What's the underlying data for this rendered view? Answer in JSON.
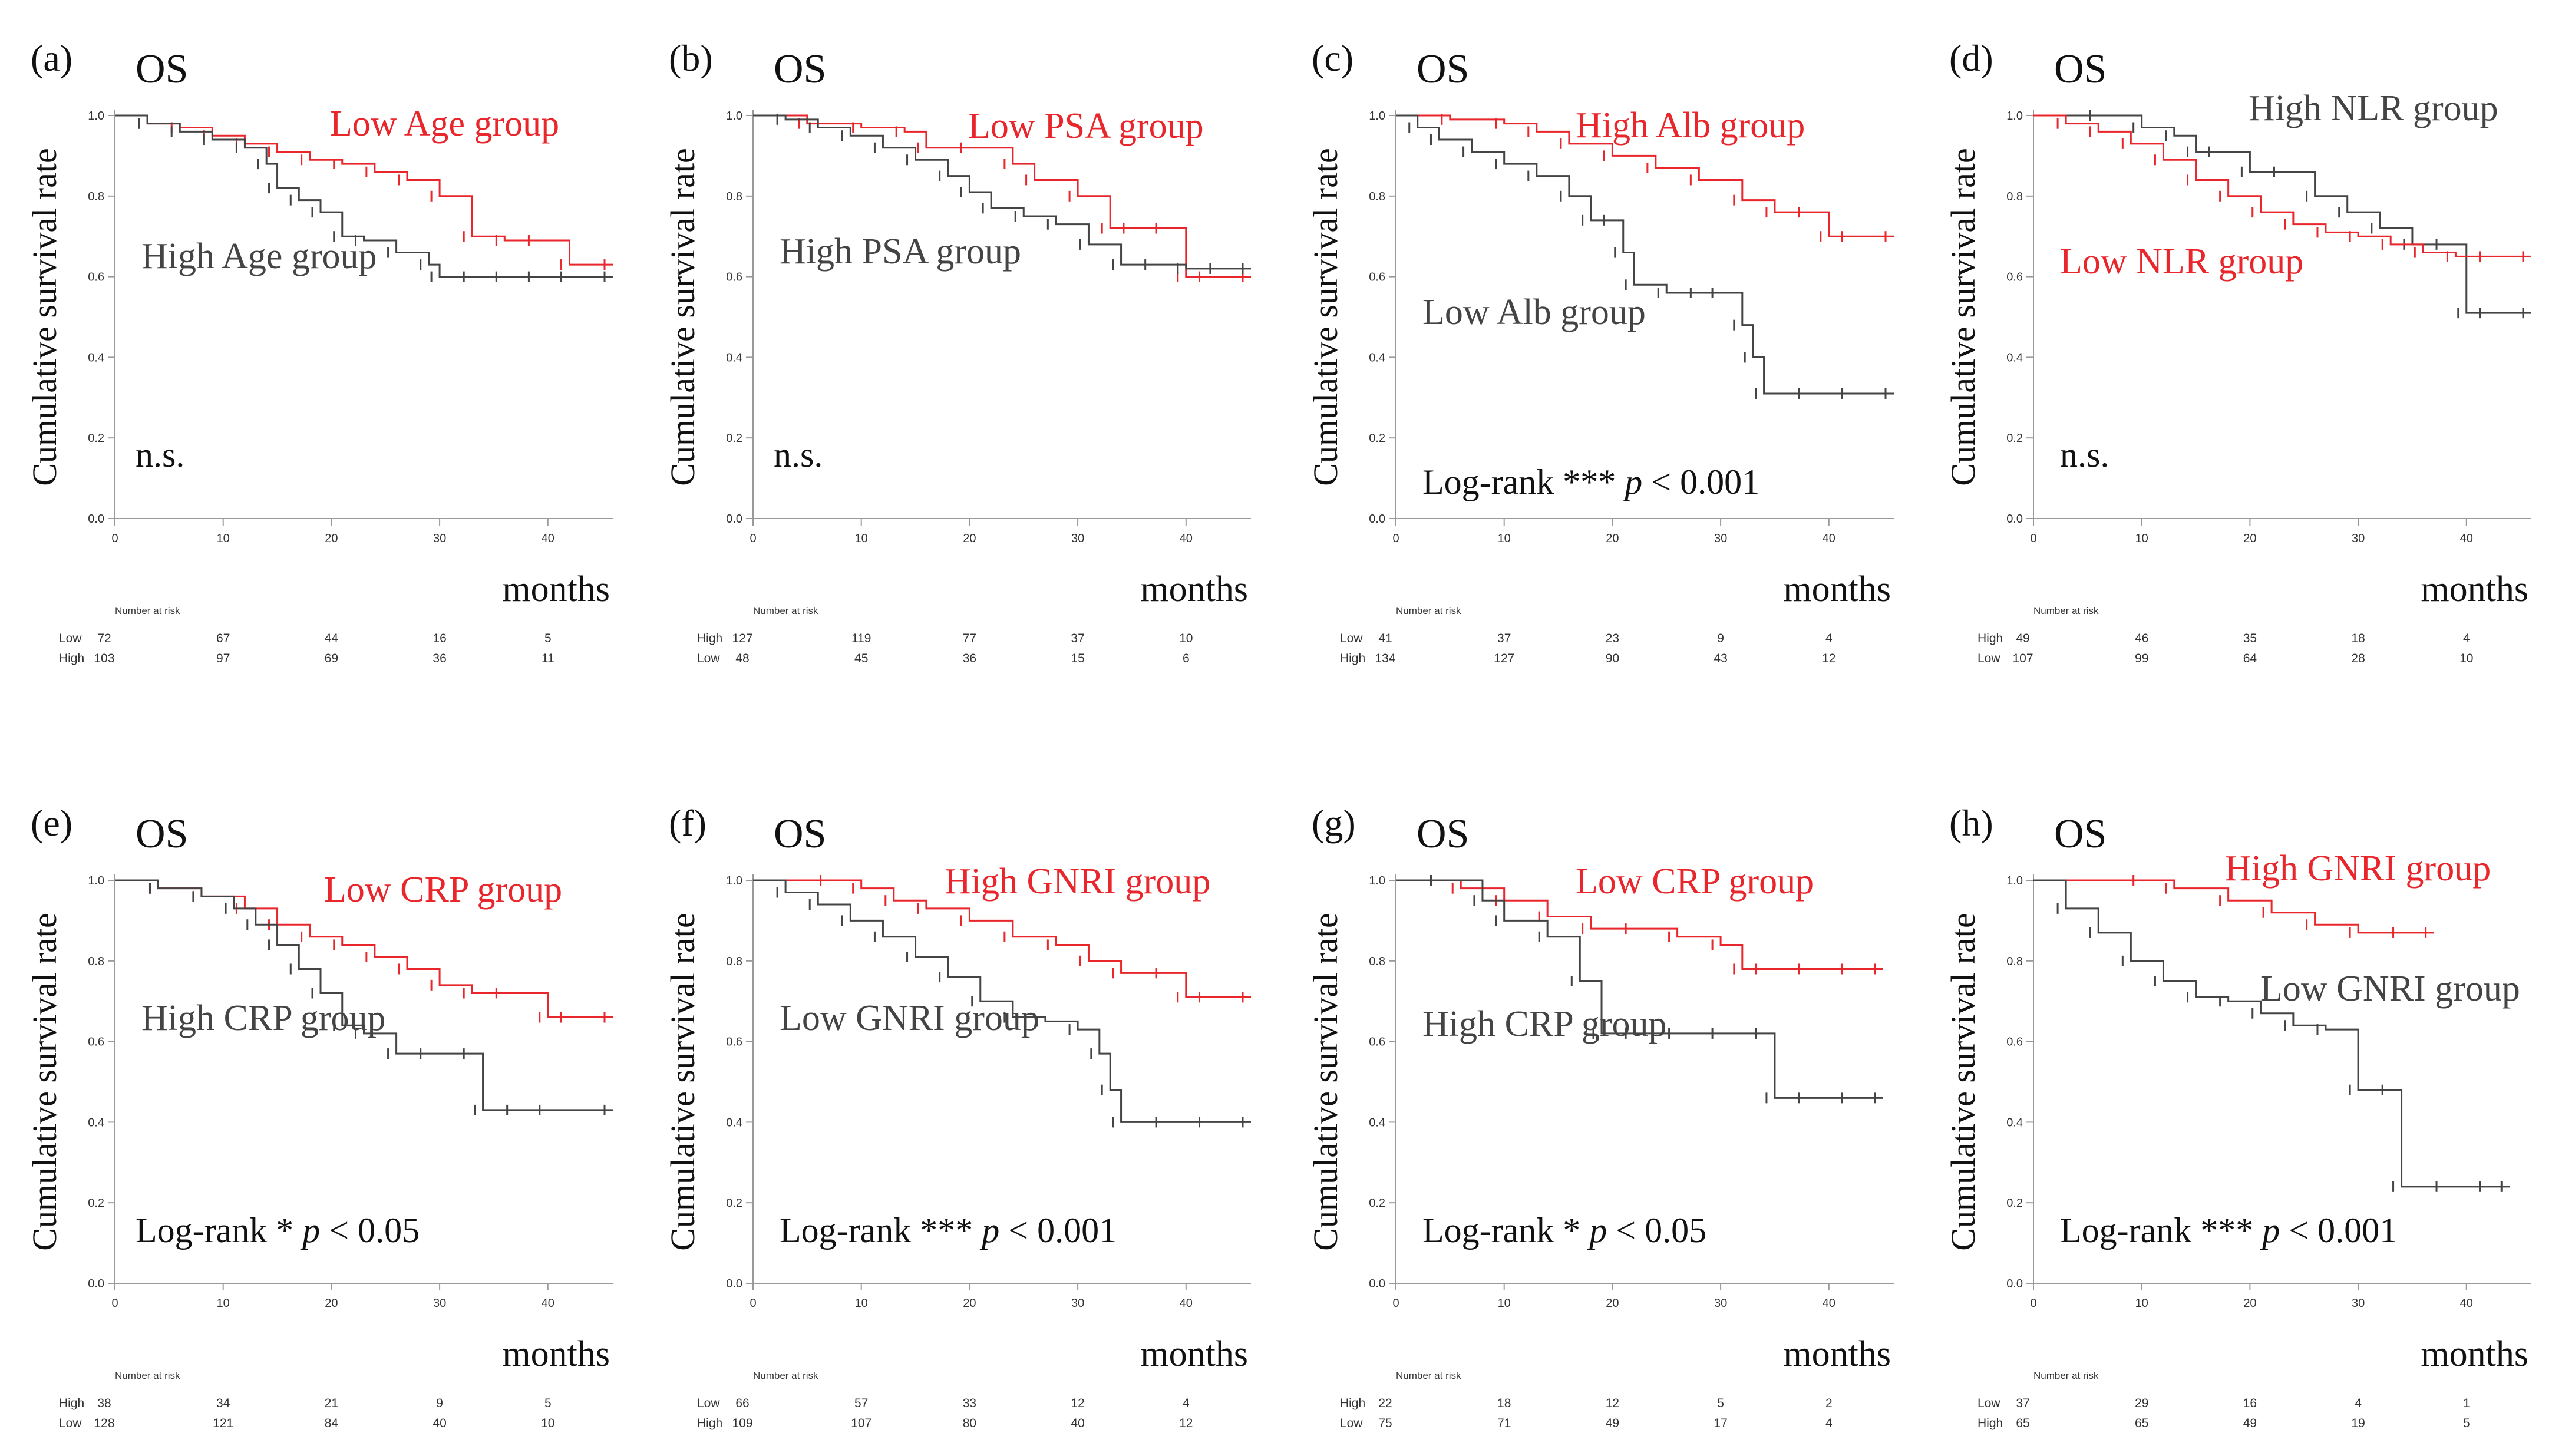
{
  "colors": {
    "red": "#e8262b",
    "dark": "#444444",
    "axis": "#9a9a9a"
  },
  "common": {
    "xlabel": "months",
    "ylabel": "Cumulative survival rate",
    "xticks": [
      "0",
      "10",
      "20",
      "30",
      "40"
    ],
    "yticks": [
      "0.0",
      "0.2",
      "0.4",
      "0.6",
      "0.8",
      "1.0"
    ],
    "xlim": [
      0,
      46
    ],
    "ylim": [
      0,
      1
    ],
    "risk_title": "Number at risk",
    "risk_times": [
      0,
      10,
      20,
      30,
      40
    ]
  },
  "chart_data": [
    {
      "type": "line",
      "panel": "(a)",
      "title": "OS",
      "annotation": "n.s.",
      "series": [
        {
          "name": "Low Age group",
          "color": "red",
          "x": [
            0,
            3,
            6,
            9,
            12,
            15,
            18,
            21,
            24,
            27,
            30,
            33,
            36,
            39,
            42,
            46
          ],
          "y": [
            1.0,
            0.98,
            0.97,
            0.95,
            0.93,
            0.91,
            0.89,
            0.88,
            0.86,
            0.84,
            0.8,
            0.7,
            0.69,
            0.69,
            0.63,
            0.63
          ]
        },
        {
          "name": "High Age group",
          "color": "dark",
          "x": [
            0,
            3,
            6,
            9,
            12,
            14,
            15,
            17,
            19,
            21,
            23,
            26,
            29,
            30,
            33,
            36,
            39,
            42,
            46
          ],
          "y": [
            1.0,
            0.98,
            0.96,
            0.94,
            0.92,
            0.88,
            0.82,
            0.79,
            0.76,
            0.7,
            0.69,
            0.66,
            0.63,
            0.6,
            0.6,
            0.6,
            0.6,
            0.6,
            0.6
          ]
        }
      ],
      "risk_table": [
        {
          "label": "Low",
          "values": [
            "72",
            "67",
            "44",
            "16",
            "5"
          ]
        },
        {
          "label": "High",
          "values": [
            "103",
            "97",
            "69",
            "36",
            "11"
          ]
        }
      ]
    },
    {
      "type": "line",
      "panel": "(b)",
      "title": "OS",
      "annotation": "n.s.",
      "series": [
        {
          "name": "Low PSA group",
          "color": "red",
          "x": [
            0,
            5,
            10,
            14,
            16,
            20,
            24,
            26,
            30,
            33,
            35,
            38,
            40,
            42,
            46
          ],
          "y": [
            1.0,
            0.98,
            0.97,
            0.96,
            0.92,
            0.92,
            0.88,
            0.84,
            0.8,
            0.72,
            0.72,
            0.72,
            0.6,
            0.6,
            0.6
          ]
        },
        {
          "name": "High PSA group",
          "color": "dark",
          "x": [
            0,
            3,
            6,
            9,
            12,
            15,
            18,
            20,
            22,
            25,
            28,
            31,
            34,
            37,
            40,
            43,
            46
          ],
          "y": [
            1.0,
            0.99,
            0.97,
            0.95,
            0.92,
            0.89,
            0.85,
            0.81,
            0.77,
            0.75,
            0.73,
            0.68,
            0.63,
            0.63,
            0.62,
            0.62,
            0.62
          ]
        }
      ],
      "risk_table": [
        {
          "label": "High",
          "values": [
            "127",
            "119",
            "77",
            "37",
            "10"
          ]
        },
        {
          "label": "Low",
          "values": [
            "48",
            "45",
            "36",
            "15",
            "6"
          ]
        }
      ]
    },
    {
      "type": "line",
      "panel": "(c)",
      "title": "OS",
      "annotation": "Log-rank *** p < 0.001",
      "series": [
        {
          "name": "High Alb group",
          "color": "red",
          "x": [
            0,
            5,
            10,
            13,
            16,
            20,
            24,
            28,
            32,
            35,
            38,
            40,
            42,
            46
          ],
          "y": [
            1.0,
            0.99,
            0.98,
            0.96,
            0.93,
            0.9,
            0.87,
            0.84,
            0.79,
            0.76,
            0.76,
            0.7,
            0.7,
            0.7
          ]
        },
        {
          "name": "Low Alb group",
          "color": "dark",
          "x": [
            0,
            2,
            4,
            7,
            10,
            13,
            16,
            18,
            20,
            21,
            22,
            25,
            28,
            30,
            32,
            33,
            34,
            38,
            42,
            46
          ],
          "y": [
            1.0,
            0.97,
            0.94,
            0.91,
            0.88,
            0.85,
            0.8,
            0.74,
            0.74,
            0.66,
            0.58,
            0.56,
            0.56,
            0.56,
            0.48,
            0.4,
            0.31,
            0.31,
            0.31,
            0.31
          ]
        }
      ],
      "risk_table": [
        {
          "label": "Low",
          "values": [
            "41",
            "37",
            "23",
            "9",
            "4"
          ]
        },
        {
          "label": "High",
          "values": [
            "134",
            "127",
            "90",
            "43",
            "12"
          ]
        }
      ]
    },
    {
      "type": "line",
      "panel": "(d)",
      "title": "OS",
      "annotation": "n.s.",
      "series": [
        {
          "name": "High NLR group",
          "color": "dark",
          "x": [
            0,
            6,
            10,
            13,
            15,
            17,
            20,
            23,
            26,
            29,
            32,
            35,
            38,
            40,
            42,
            46
          ],
          "y": [
            1.0,
            1.0,
            0.97,
            0.95,
            0.91,
            0.91,
            0.86,
            0.86,
            0.8,
            0.76,
            0.72,
            0.68,
            0.68,
            0.51,
            0.51,
            0.51
          ]
        },
        {
          "name": "Low NLR group",
          "color": "red",
          "x": [
            0,
            3,
            6,
            9,
            12,
            15,
            18,
            21,
            24,
            27,
            30,
            33,
            36,
            39,
            42,
            46
          ],
          "y": [
            1.0,
            0.98,
            0.96,
            0.93,
            0.89,
            0.84,
            0.8,
            0.76,
            0.73,
            0.71,
            0.7,
            0.68,
            0.66,
            0.65,
            0.65,
            0.65
          ]
        }
      ],
      "risk_table": [
        {
          "label": "High",
          "values": [
            "49",
            "46",
            "35",
            "18",
            "4"
          ]
        },
        {
          "label": "Low",
          "values": [
            "107",
            "99",
            "64",
            "28",
            "10"
          ]
        }
      ]
    },
    {
      "type": "line",
      "panel": "(e)",
      "title": "OS",
      "annotation": "Log-rank * p < 0.05",
      "series": [
        {
          "name": "Low CRP group",
          "color": "red",
          "x": [
            0,
            4,
            8,
            12,
            15,
            18,
            21,
            24,
            27,
            30,
            33,
            36,
            40,
            42,
            46
          ],
          "y": [
            1.0,
            0.98,
            0.96,
            0.93,
            0.89,
            0.86,
            0.84,
            0.81,
            0.78,
            0.74,
            0.72,
            0.72,
            0.66,
            0.66,
            0.66
          ]
        },
        {
          "name": "High CRP group",
          "color": "dark",
          "x": [
            0,
            4,
            8,
            11,
            13,
            15,
            17,
            19,
            21,
            23,
            26,
            29,
            33,
            34,
            37,
            40,
            46
          ],
          "y": [
            1.0,
            0.98,
            0.96,
            0.93,
            0.89,
            0.84,
            0.78,
            0.72,
            0.64,
            0.62,
            0.57,
            0.57,
            0.57,
            0.43,
            0.43,
            0.43,
            0.43
          ]
        }
      ],
      "risk_table": [
        {
          "label": "High",
          "values": [
            "38",
            "34",
            "21",
            "9",
            "5"
          ]
        },
        {
          "label": "Low",
          "values": [
            "128",
            "121",
            "84",
            "40",
            "10"
          ]
        }
      ]
    },
    {
      "type": "line",
      "panel": "(f)",
      "title": "OS",
      "annotation": "Log-rank *** p < 0.001",
      "series": [
        {
          "name": "High GNRI group",
          "color": "red",
          "x": [
            0,
            7,
            10,
            13,
            16,
            20,
            24,
            28,
            31,
            34,
            38,
            40,
            42,
            46
          ],
          "y": [
            1.0,
            1.0,
            0.98,
            0.95,
            0.93,
            0.9,
            0.86,
            0.84,
            0.8,
            0.77,
            0.77,
            0.71,
            0.71,
            0.71
          ]
        },
        {
          "name": "Low GNRI group",
          "color": "dark",
          "x": [
            0,
            3,
            6,
            9,
            12,
            15,
            18,
            21,
            24,
            27,
            30,
            32,
            33,
            34,
            38,
            42,
            46
          ],
          "y": [
            1.0,
            0.97,
            0.94,
            0.9,
            0.86,
            0.81,
            0.76,
            0.7,
            0.66,
            0.65,
            0.63,
            0.57,
            0.48,
            0.4,
            0.4,
            0.4,
            0.4
          ]
        }
      ],
      "risk_table": [
        {
          "label": "Low",
          "values": [
            "66",
            "57",
            "33",
            "12",
            "4"
          ]
        },
        {
          "label": "High",
          "values": [
            "109",
            "107",
            "80",
            "40",
            "12"
          ]
        }
      ]
    },
    {
      "type": "line",
      "panel": "(g)",
      "title": "OS",
      "annotation": "Log-rank * p < 0.05",
      "series": [
        {
          "name": "Low CRP group",
          "color": "red",
          "x": [
            0,
            6,
            10,
            14,
            18,
            22,
            26,
            30,
            32,
            34,
            38,
            42,
            45
          ],
          "y": [
            1.0,
            0.98,
            0.95,
            0.91,
            0.88,
            0.88,
            0.86,
            0.84,
            0.78,
            0.78,
            0.78,
            0.78,
            0.78
          ]
        },
        {
          "name": "High CRP group",
          "color": "dark",
          "x": [
            0,
            4,
            8,
            10,
            14,
            17,
            19,
            22,
            26,
            30,
            34,
            35,
            38,
            42,
            45
          ],
          "y": [
            1.0,
            1.0,
            0.95,
            0.9,
            0.86,
            0.75,
            0.62,
            0.62,
            0.62,
            0.62,
            0.62,
            0.46,
            0.46,
            0.46,
            0.46
          ]
        }
      ],
      "risk_table": [
        {
          "label": "High",
          "values": [
            "22",
            "18",
            "12",
            "5",
            "2"
          ]
        },
        {
          "label": "Low",
          "values": [
            "75",
            "71",
            "49",
            "17",
            "4"
          ]
        }
      ]
    },
    {
      "type": "line",
      "panel": "(h)",
      "title": "OS",
      "annotation": "Log-rank *** p < 0.001",
      "series": [
        {
          "name": "High GNRI group",
          "color": "red",
          "x": [
            0,
            10,
            13,
            18,
            22,
            26,
            30,
            34,
            37
          ],
          "y": [
            1.0,
            1.0,
            0.98,
            0.95,
            0.92,
            0.89,
            0.87,
            0.87,
            0.87
          ]
        },
        {
          "name": "Low GNRI group",
          "color": "dark",
          "x": [
            0,
            3,
            6,
            9,
            12,
            15,
            18,
            21,
            24,
            27,
            30,
            33,
            34,
            38,
            42,
            44
          ],
          "y": [
            1.0,
            0.93,
            0.87,
            0.8,
            0.75,
            0.71,
            0.7,
            0.67,
            0.64,
            0.63,
            0.48,
            0.48,
            0.24,
            0.24,
            0.24,
            0.24
          ]
        }
      ],
      "risk_table": [
        {
          "label": "Low",
          "values": [
            "37",
            "29",
            "16",
            "4",
            "1"
          ]
        },
        {
          "label": "High",
          "values": [
            "65",
            "65",
            "49",
            "19",
            "5"
          ]
        }
      ]
    }
  ]
}
